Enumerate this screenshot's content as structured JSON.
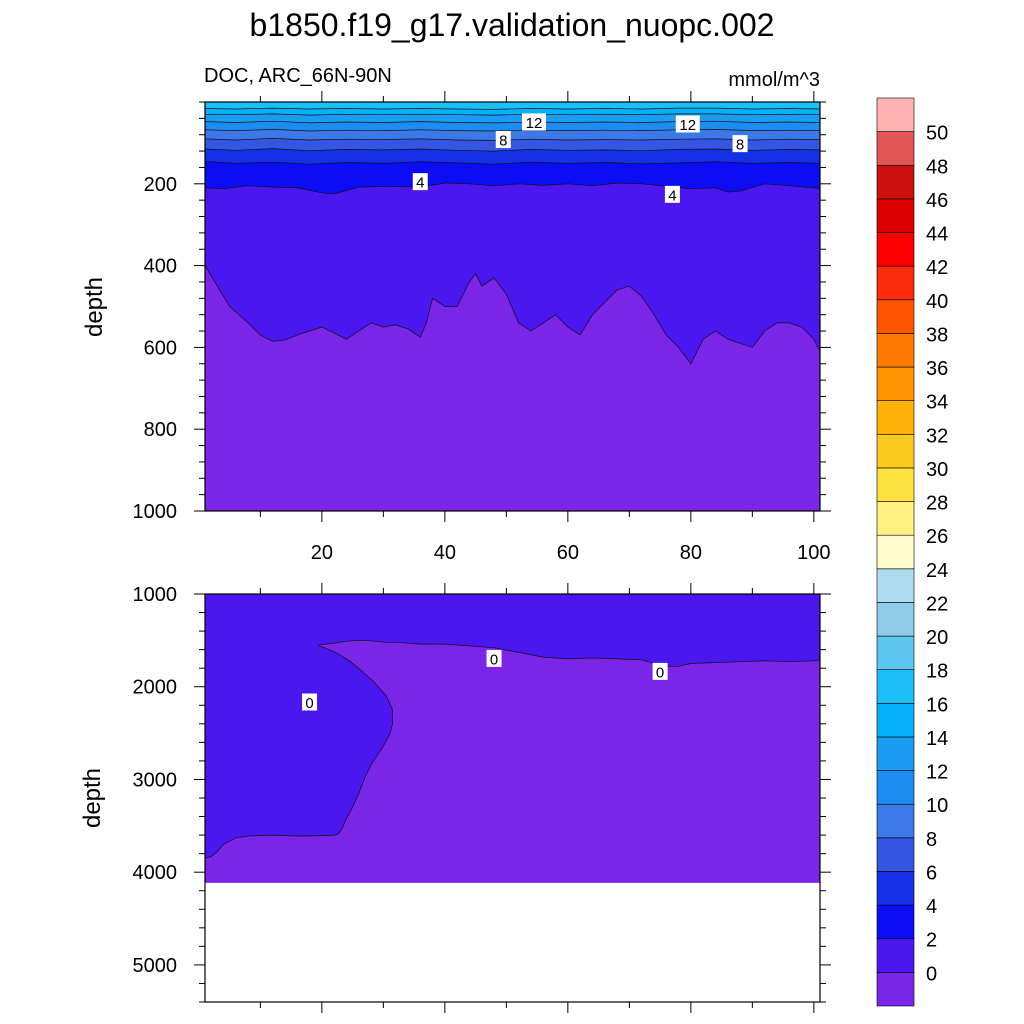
{
  "title": "b1850.f19_g17.validation_nuopc.002",
  "colors": {
    "levels": [
      "#7B25E8",
      "#4A17F0",
      "#0C0CF6",
      "#1630E6",
      "#3556E3",
      "#3C78E8",
      "#1C8CF0",
      "#1A9CF2",
      "#07B1FA",
      "#1CC0F8",
      "#5CC8F2",
      "#90CCEA",
      "#B0DCF2",
      "#FFFDCC",
      "#FFF283",
      "#FEE23E",
      "#FFCA1F",
      "#FEB207",
      "#FF9400",
      "#FF7A00",
      "#FE5500",
      "#FC2A0C",
      "#FE0000",
      "#DD0000",
      "#CC1010",
      "#E45555",
      "#FFB3B3"
    ],
    "band_labels": [
      "#ffffff",
      "#000000"
    ]
  },
  "chart_data": [
    {
      "type": "contour",
      "panel": "upper",
      "variable_label": "DOC, ARC_66N-90N",
      "units": "mmol/m^3",
      "xlabel": "",
      "ylabel": "depth",
      "xlim": [
        1,
        101
      ],
      "ylim": [
        0,
        1000
      ],
      "y_inverted": true,
      "x_ticks": [
        20,
        40,
        60,
        80,
        100
      ],
      "y_ticks": [
        200,
        400,
        600,
        800,
        1000
      ],
      "boundaries": [
        {
          "level": 0,
          "x": [
            1,
            3,
            5,
            8,
            10,
            12,
            14,
            16,
            18,
            20,
            22,
            24,
            26,
            28,
            30,
            32,
            34,
            36,
            37,
            38,
            40,
            42,
            44,
            45,
            46,
            48,
            50,
            52,
            54,
            56,
            58,
            60,
            62,
            64,
            66,
            68,
            70,
            72,
            74,
            76,
            78,
            80,
            82,
            84,
            86,
            88,
            90,
            92,
            94,
            96,
            98,
            100,
            101
          ],
          "y": [
            400,
            450,
            500,
            540,
            570,
            585,
            582,
            570,
            560,
            550,
            565,
            580,
            560,
            540,
            550,
            545,
            555,
            575,
            540,
            480,
            500,
            500,
            440,
            420,
            450,
            430,
            470,
            540,
            560,
            540,
            520,
            550,
            570,
            520,
            490,
            460,
            450,
            475,
            520,
            570,
            600,
            640,
            580,
            560,
            580,
            590,
            600,
            560,
            540,
            540,
            550,
            580,
            610
          ]
        },
        {
          "level": 2,
          "x": [
            1,
            4,
            8,
            12,
            16,
            20,
            22,
            26,
            30,
            36,
            40,
            44,
            48,
            52,
            56,
            60,
            64,
            68,
            72,
            76,
            80,
            84,
            86,
            88,
            92,
            96,
            100,
            101
          ],
          "y": [
            210,
            212,
            205,
            208,
            210,
            222,
            225,
            208,
            206,
            208,
            198,
            200,
            205,
            200,
            204,
            200,
            205,
            198,
            200,
            206,
            212,
            210,
            220,
            218,
            200,
            205,
            210,
            212
          ]
        },
        {
          "level": 4,
          "x": [
            1,
            6,
            12,
            18,
            24,
            30,
            36,
            42,
            48,
            54,
            60,
            66,
            72,
            78,
            84,
            90,
            96,
            101
          ],
          "y": [
            145,
            150,
            147,
            152,
            148,
            150,
            146,
            149,
            152,
            147,
            150,
            148,
            151,
            149,
            146,
            150,
            148,
            150
          ]
        },
        {
          "level": 6,
          "x": [
            1,
            6,
            12,
            18,
            24,
            30,
            36,
            42,
            48,
            54,
            60,
            66,
            72,
            78,
            84,
            90,
            96,
            101
          ],
          "y": [
            115,
            118,
            114,
            119,
            116,
            117,
            115,
            118,
            120,
            116,
            118,
            117,
            119,
            116,
            115,
            118,
            116,
            117
          ]
        },
        {
          "level": 8,
          "x": [
            1,
            6,
            12,
            18,
            24,
            30,
            36,
            42,
            48,
            54,
            60,
            66,
            72,
            78,
            84,
            90,
            96,
            101
          ],
          "y": [
            90,
            93,
            89,
            93,
            91,
            92,
            90,
            93,
            94,
            91,
            93,
            92,
            93,
            91,
            90,
            93,
            91,
            92
          ]
        },
        {
          "level": 10,
          "x": [
            1,
            6,
            12,
            18,
            24,
            30,
            36,
            42,
            48,
            54,
            60,
            66,
            72,
            78,
            84,
            90,
            96,
            101
          ],
          "y": [
            68,
            70,
            67,
            71,
            69,
            70,
            68,
            70,
            71,
            69,
            70,
            69,
            70,
            68,
            67,
            70,
            69,
            70
          ]
        },
        {
          "level": 12,
          "x": [
            1,
            6,
            12,
            18,
            24,
            30,
            36,
            42,
            48,
            54,
            60,
            66,
            72,
            78,
            84,
            90,
            96,
            101
          ],
          "y": [
            48,
            50,
            47,
            51,
            49,
            50,
            48,
            50,
            51,
            49,
            50,
            49,
            50,
            48,
            47,
            50,
            49,
            50
          ]
        },
        {
          "level": 14,
          "x": [
            1,
            6,
            12,
            18,
            24,
            30,
            36,
            42,
            48,
            54,
            60,
            66,
            72,
            78,
            84,
            90,
            96,
            101
          ],
          "y": [
            30,
            31,
            29,
            32,
            30,
            31,
            30,
            31,
            32,
            30,
            31,
            30,
            31,
            29,
            29,
            31,
            30,
            31
          ]
        },
        {
          "level": 16,
          "x": [
            1,
            6,
            12,
            18,
            24,
            30,
            36,
            42,
            48,
            54,
            60,
            66,
            72,
            78,
            84,
            90,
            96,
            101
          ],
          "y": [
            16,
            17,
            15,
            17,
            16,
            17,
            16,
            17,
            18,
            16,
            17,
            16,
            17,
            15,
            15,
            17,
            16,
            17
          ]
        }
      ],
      "contour_labels": [
        {
          "text": "12",
          "x": 54.5,
          "y": 50
        },
        {
          "text": "12",
          "x": 79.5,
          "y": 55
        },
        {
          "text": "8",
          "x": 49.5,
          "y": 93
        },
        {
          "text": "8",
          "x": 88,
          "y": 103
        },
        {
          "text": "4",
          "x": 36,
          "y": 196
        },
        {
          "text": "4",
          "x": 77,
          "y": 227
        }
      ]
    },
    {
      "type": "contour",
      "panel": "lower",
      "variable_label": "",
      "units": "",
      "xlabel": "",
      "ylabel": "depth",
      "xlim": [
        1,
        101
      ],
      "ylim": [
        1000,
        5400
      ],
      "y_inverted": true,
      "y_ticks": [
        1000,
        2000,
        3000,
        4000,
        5000
      ],
      "bottom_depth": 4115,
      "boundaries": [
        {
          "level": 0,
          "x": [
            1,
            2,
            3,
            4,
            6,
            8,
            10,
            12,
            14,
            16,
            18,
            20,
            22,
            22.5,
            23,
            23.5,
            24,
            25,
            26,
            27,
            28,
            29,
            30,
            31,
            31.5,
            31.5,
            30.5,
            28.5,
            26.5,
            24.5,
            22.5,
            20.5,
            19.5,
            19.5,
            22,
            24,
            26,
            28,
            30,
            33,
            36,
            40,
            44,
            48,
            52,
            56,
            60,
            64,
            68,
            72,
            74,
            76,
            78,
            80,
            84,
            88,
            92,
            96,
            100,
            101
          ],
          "y": [
            3850,
            3830,
            3780,
            3700,
            3630,
            3610,
            3605,
            3600,
            3605,
            3610,
            3610,
            3605,
            3600,
            3595,
            3560,
            3500,
            3420,
            3300,
            3150,
            2980,
            2840,
            2740,
            2640,
            2520,
            2400,
            2250,
            2100,
            1950,
            1830,
            1720,
            1640,
            1580,
            1560,
            1550,
            1530,
            1510,
            1500,
            1505,
            1520,
            1525,
            1540,
            1540,
            1560,
            1580,
            1630,
            1680,
            1700,
            1690,
            1700,
            1710,
            1750,
            1780,
            1780,
            1750,
            1740,
            1730,
            1720,
            1730,
            1720,
            1710
          ]
        }
      ],
      "contour_labels": [
        {
          "text": "0",
          "x": 48,
          "y": 1700
        },
        {
          "text": "0",
          "x": 75,
          "y": 1840
        },
        {
          "text": "0",
          "x": 18,
          "y": 2170
        }
      ]
    },
    {
      "type": "colorbar",
      "labels": [
        "0",
        "2",
        "4",
        "6",
        "8",
        "10",
        "12",
        "14",
        "16",
        "18",
        "20",
        "22",
        "24",
        "26",
        "28",
        "30",
        "32",
        "34",
        "36",
        "38",
        "40",
        "42",
        "44",
        "46",
        "48",
        "50"
      ],
      "n_boxes": 27
    }
  ]
}
